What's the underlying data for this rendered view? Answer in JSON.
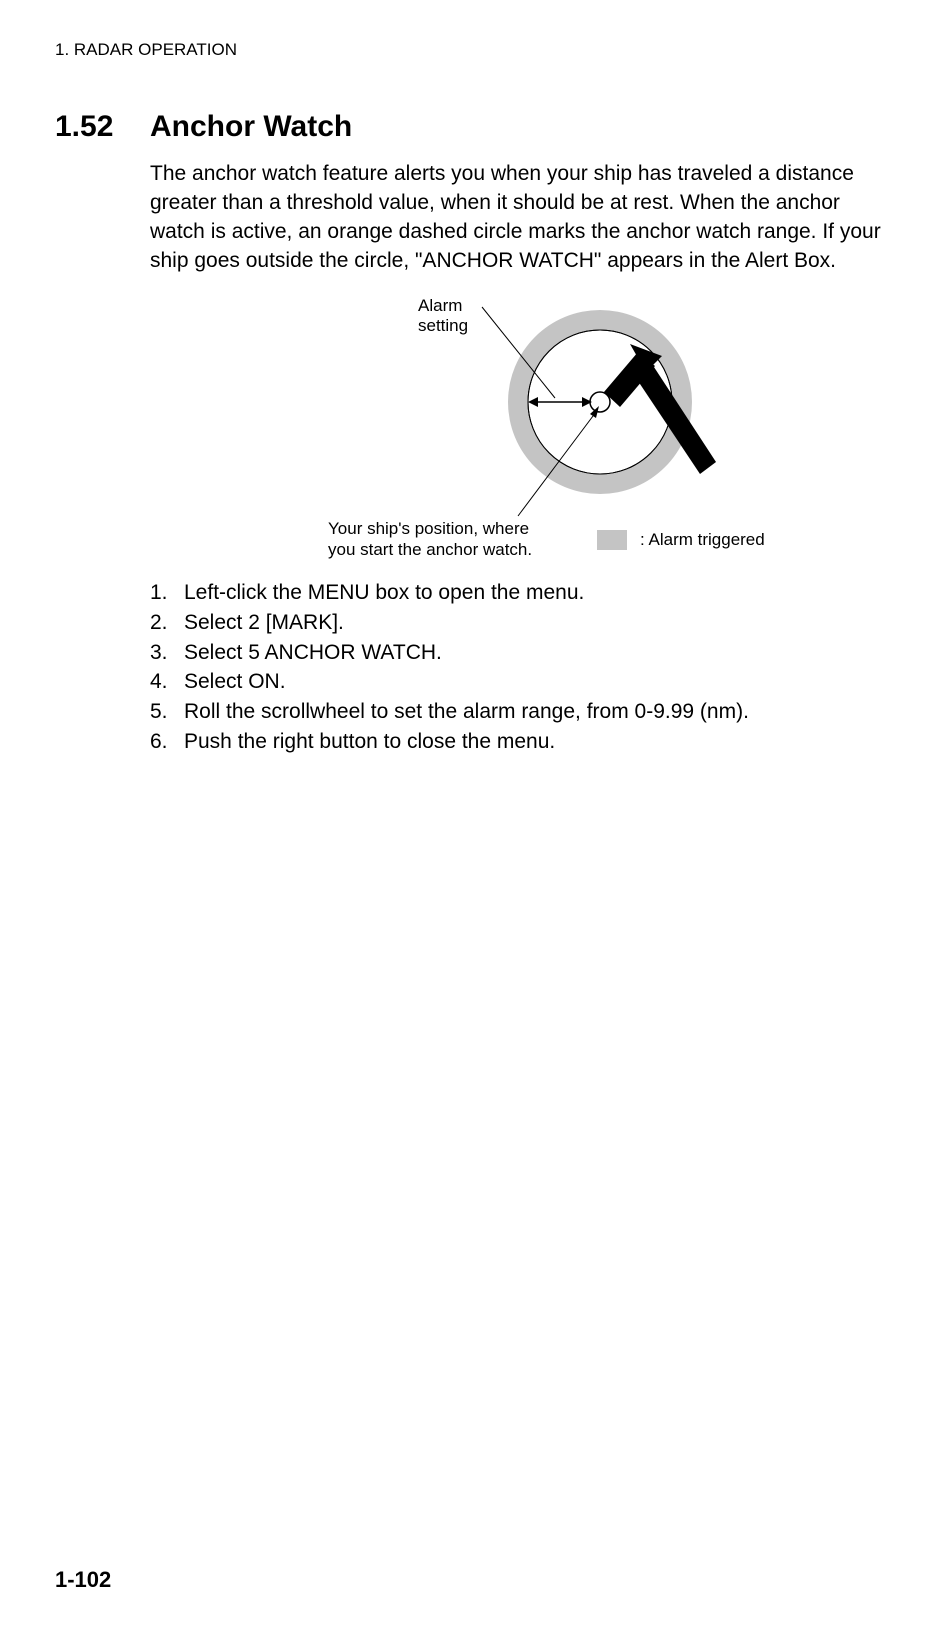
{
  "header": {
    "chapter_label": "1. RADAR OPERATION"
  },
  "section": {
    "number": "1.52",
    "title": "Anchor Watch"
  },
  "paragraph": "The anchor watch feature alerts you when your ship has traveled a distance greater than a threshold value, when it should be at rest. When the anchor watch is active, an orange dashed circle marks the anchor watch range. If your ship goes outside the circle, \"ANCHOR WATCH\" appears in the Alert Box.",
  "diagram": {
    "alarm_label": "Alarm\nsetting",
    "ship_label": "Your ship's position, where\nyou start the anchor watch.",
    "legend_text": ": Alarm triggered",
    "colors": {
      "ring_fill": "#c4c4c4",
      "inner_fill": "#ffffff",
      "stroke": "#000000",
      "legend_fill": "#c4c4c4"
    }
  },
  "steps": [
    {
      "n": "1.",
      "text": "Left-click the MENU box to open the menu."
    },
    {
      "n": "2.",
      "text": "Select 2 [MARK]."
    },
    {
      "n": "3.",
      "text": "Select 5 ANCHOR WATCH."
    },
    {
      "n": "4.",
      "text": "Select ON."
    },
    {
      "n": "5.",
      "text": "Roll the scrollwheel to set the alarm range, from 0-9.99 (nm)."
    },
    {
      "n": "6.",
      "text": "Push the right button to close the menu."
    }
  ],
  "page_number": "1-102"
}
